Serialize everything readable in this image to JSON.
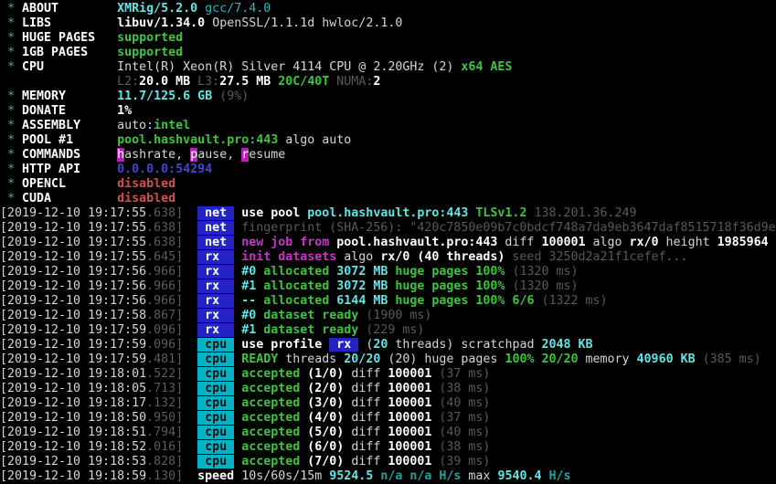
{
  "palette": {
    "background": "#000000",
    "white": "#d6d6d6",
    "white_bright": "#ffffff",
    "green": "#3ec53e",
    "cyan": "#2ab3c5",
    "cyan_bright": "#5fe6e6",
    "teal_dim": "#2a9d9d",
    "gray": "#5a5a5a",
    "magenta": "#c538c5",
    "magenta_hotkey_bg": "#bb1dbb",
    "red": "#cf5050",
    "blue": "#4545d5",
    "badge_blue_bg": "#2323c8",
    "badge_cyan_bg": "#00b3c4"
  },
  "terminal": {
    "bullet": "*",
    "config_rows": [
      {
        "label": "ABOUT",
        "star": true,
        "segments": [
          {
            "t": "XMRig/5.2.0",
            "c": "cyb"
          },
          {
            "t": " gcc/7.4.0",
            "c": "cy"
          }
        ]
      },
      {
        "label": "LIBS",
        "star": true,
        "segments": [
          {
            "t": "libuv/1.34.0",
            "c": "wb"
          },
          {
            "t": " OpenSSL/1.1.1d hwloc/2.1.0",
            "c": "w"
          }
        ]
      },
      {
        "label": "HUGE PAGES",
        "star": true,
        "segments": [
          {
            "t": "supported",
            "c": "g"
          }
        ]
      },
      {
        "label": "1GB PAGES",
        "star": true,
        "segments": [
          {
            "t": "supported",
            "c": "g"
          }
        ]
      },
      {
        "label": "CPU",
        "star": true,
        "segments": [
          {
            "t": "Intel(R) Xeon(R) Silver 4114 CPU @ 2.20GHz (2) ",
            "c": "w"
          },
          {
            "t": "x64 AES",
            "c": "g"
          }
        ]
      },
      {
        "label": "",
        "star": false,
        "segments": [
          {
            "t": "L2:",
            "c": "gr"
          },
          {
            "t": "20.0 MB ",
            "c": "wb"
          },
          {
            "t": "L3:",
            "c": "gr"
          },
          {
            "t": "27.5 MB ",
            "c": "wb"
          },
          {
            "t": "20C/40T ",
            "c": "g"
          },
          {
            "t": "NUMA:",
            "c": "gr"
          },
          {
            "t": "2",
            "c": "wb"
          }
        ]
      },
      {
        "label": "MEMORY",
        "star": true,
        "segments": [
          {
            "t": "11.7/125.6 GB ",
            "c": "cyb"
          },
          {
            "t": "(9%)",
            "c": "gr"
          }
        ]
      },
      {
        "label": "DONATE",
        "star": true,
        "segments": [
          {
            "t": "1%",
            "c": "wb"
          }
        ]
      },
      {
        "label": "ASSEMBLY",
        "star": true,
        "segments": [
          {
            "t": "auto:",
            "c": "w"
          },
          {
            "t": "intel",
            "c": "g"
          }
        ]
      },
      {
        "label": "POOL #1",
        "star": true,
        "segments": [
          {
            "t": "pool.hashvault.pro:443",
            "c": "g"
          },
          {
            "t": " algo auto",
            "c": "w"
          }
        ]
      },
      {
        "label": "COMMANDS",
        "star": true,
        "segments": [
          {
            "t": "h",
            "c": "w",
            "bg": "hotkey"
          },
          {
            "t": "ashrate, ",
            "c": "w"
          },
          {
            "t": "p",
            "c": "w",
            "bg": "hotkey"
          },
          {
            "t": "ause, ",
            "c": "w"
          },
          {
            "t": "r",
            "c": "w",
            "bg": "hotkey"
          },
          {
            "t": "esume",
            "c": "w"
          }
        ]
      },
      {
        "label": "HTTP API",
        "star": true,
        "segments": [
          {
            "t": "0.0.0.0:54294",
            "c": "bl"
          }
        ]
      },
      {
        "label": "OPENCL",
        "star": true,
        "segments": [
          {
            "t": "disabled",
            "c": "r"
          }
        ]
      },
      {
        "label": "CUDA",
        "star": true,
        "segments": [
          {
            "t": "disabled",
            "c": "r"
          }
        ]
      }
    ],
    "log_rows": [
      {
        "time": "[2019-12-10 19:17:55",
        "ms": ".638]",
        "tag": " net ",
        "tag_style": "tag-net",
        "segments": [
          {
            "t": "use pool ",
            "c": "wb"
          },
          {
            "t": "pool.hashvault.pro:443 ",
            "c": "cyb"
          },
          {
            "t": "TLSv1.2 ",
            "c": "g"
          },
          {
            "t": "138.201.36.249",
            "c": "gr"
          }
        ]
      },
      {
        "time": "[2019-12-10 19:17:55",
        "ms": ".638]",
        "tag": " net ",
        "tag_style": "tag-net",
        "segments": [
          {
            "t": "fingerprint (SHA-256): \"420c7850e09b7c0bdcf748a7da9eb3647daf8515718f36d9e",
            "c": "gr"
          }
        ]
      },
      {
        "time": "[2019-12-10 19:17:55",
        "ms": ".638]",
        "tag": " net ",
        "tag_style": "tag-net",
        "segments": [
          {
            "t": "new job from ",
            "c": "m"
          },
          {
            "t": "pool.hashvault.pro:443 ",
            "c": "wb"
          },
          {
            "t": "diff ",
            "c": "w"
          },
          {
            "t": "100001 ",
            "c": "wb"
          },
          {
            "t": "algo ",
            "c": "w"
          },
          {
            "t": "rx/0 ",
            "c": "wb"
          },
          {
            "t": "height ",
            "c": "w"
          },
          {
            "t": "1985964",
            "c": "wb"
          }
        ]
      },
      {
        "time": "[2019-12-10 19:17:55",
        "ms": ".645]",
        "tag": " rx  ",
        "tag_style": "tag-net",
        "segments": [
          {
            "t": "init datasets ",
            "c": "m"
          },
          {
            "t": "algo ",
            "c": "w"
          },
          {
            "t": "rx/0 ",
            "c": "wb"
          },
          {
            "t": "(40 threads) ",
            "c": "wb"
          },
          {
            "t": "seed 3250d2a21f1cefef...",
            "c": "gr"
          }
        ]
      },
      {
        "time": "[2019-12-10 19:17:56",
        "ms": ".966]",
        "tag": " rx  ",
        "tag_style": "tag-net",
        "segments": [
          {
            "t": "#0 ",
            "c": "cyb"
          },
          {
            "t": "allocated ",
            "c": "g"
          },
          {
            "t": "3072 MB ",
            "c": "cyb"
          },
          {
            "t": "huge pages ",
            "c": "g"
          },
          {
            "t": "100% ",
            "c": "g"
          },
          {
            "t": "(1320 ms)",
            "c": "gr"
          }
        ]
      },
      {
        "time": "[2019-12-10 19:17:56",
        "ms": ".966]",
        "tag": " rx  ",
        "tag_style": "tag-net",
        "segments": [
          {
            "t": "#1 ",
            "c": "cyb"
          },
          {
            "t": "allocated ",
            "c": "g"
          },
          {
            "t": "3072 MB ",
            "c": "cyb"
          },
          {
            "t": "huge pages ",
            "c": "g"
          },
          {
            "t": "100% ",
            "c": "g"
          },
          {
            "t": "(1320 ms)",
            "c": "gr"
          }
        ]
      },
      {
        "time": "[2019-12-10 19:17:56",
        "ms": ".966]",
        "tag": " rx  ",
        "tag_style": "tag-net",
        "segments": [
          {
            "t": "-- ",
            "c": "cyb"
          },
          {
            "t": "allocated ",
            "c": "g"
          },
          {
            "t": "6144 MB ",
            "c": "cyb"
          },
          {
            "t": "huge pages ",
            "c": "g"
          },
          {
            "t": "100% 6/6 ",
            "c": "g"
          },
          {
            "t": "(1322 ms)",
            "c": "gr"
          }
        ]
      },
      {
        "time": "[2019-12-10 19:17:58",
        "ms": ".867]",
        "tag": " rx  ",
        "tag_style": "tag-net",
        "segments": [
          {
            "t": "#0 ",
            "c": "cyb"
          },
          {
            "t": "dataset ready ",
            "c": "g"
          },
          {
            "t": "(1900 ms)",
            "c": "gr"
          }
        ]
      },
      {
        "time": "[2019-12-10 19:17:59",
        "ms": ".096]",
        "tag": " rx  ",
        "tag_style": "tag-net",
        "segments": [
          {
            "t": "#1 ",
            "c": "cyb"
          },
          {
            "t": "dataset ready ",
            "c": "g"
          },
          {
            "t": "(229 ms)",
            "c": "gr"
          }
        ]
      },
      {
        "time": "[2019-12-10 19:17:59",
        "ms": ".096]",
        "tag": " cpu ",
        "tag_style": "tag-cpu",
        "segments": [
          {
            "t": "use profile ",
            "c": "wb"
          },
          {
            "t": " rx ",
            "c": "wb",
            "bg": "badge-blue"
          },
          {
            "t": " (",
            "c": "w"
          },
          {
            "t": "20",
            "c": "cyb"
          },
          {
            "t": " threads) ",
            "c": "w"
          },
          {
            "t": "scratchpad ",
            "c": "w"
          },
          {
            "t": "2048 KB",
            "c": "cyb"
          }
        ]
      },
      {
        "time": "[2019-12-10 19:17:59",
        "ms": ".481]",
        "tag": " cpu ",
        "tag_style": "tag-cpu",
        "segments": [
          {
            "t": "READY ",
            "c": "g"
          },
          {
            "t": "threads ",
            "c": "w"
          },
          {
            "t": "20/20",
            "c": "cyb"
          },
          {
            "t": " (20) ",
            "c": "w"
          },
          {
            "t": "huge pages ",
            "c": "w"
          },
          {
            "t": "100% 20/20 ",
            "c": "g"
          },
          {
            "t": "memory ",
            "c": "w"
          },
          {
            "t": "40960 KB ",
            "c": "cyb"
          },
          {
            "t": "(385 ms)",
            "c": "gr"
          }
        ]
      },
      {
        "time": "[2019-12-10 19:18:01",
        "ms": ".522]",
        "tag": " cpu ",
        "tag_style": "tag-cpu",
        "segments": [
          {
            "t": "accepted ",
            "c": "g"
          },
          {
            "t": "(1/0) ",
            "c": "wb"
          },
          {
            "t": "diff ",
            "c": "w"
          },
          {
            "t": "100001 ",
            "c": "wb"
          },
          {
            "t": "(37 ms)",
            "c": "gr"
          }
        ]
      },
      {
        "time": "[2019-12-10 19:18:05",
        "ms": ".713]",
        "tag": " cpu ",
        "tag_style": "tag-cpu",
        "segments": [
          {
            "t": "accepted ",
            "c": "g"
          },
          {
            "t": "(2/0) ",
            "c": "wb"
          },
          {
            "t": "diff ",
            "c": "w"
          },
          {
            "t": "100001 ",
            "c": "wb"
          },
          {
            "t": "(38 ms)",
            "c": "gr"
          }
        ]
      },
      {
        "time": "[2019-12-10 19:18:17",
        "ms": ".132]",
        "tag": " cpu ",
        "tag_style": "tag-cpu",
        "segments": [
          {
            "t": "accepted ",
            "c": "g"
          },
          {
            "t": "(3/0) ",
            "c": "wb"
          },
          {
            "t": "diff ",
            "c": "w"
          },
          {
            "t": "100001 ",
            "c": "wb"
          },
          {
            "t": "(40 ms)",
            "c": "gr"
          }
        ]
      },
      {
        "time": "[2019-12-10 19:18:50",
        "ms": ".950]",
        "tag": " cpu ",
        "tag_style": "tag-cpu",
        "segments": [
          {
            "t": "accepted ",
            "c": "g"
          },
          {
            "t": "(4/0) ",
            "c": "wb"
          },
          {
            "t": "diff ",
            "c": "w"
          },
          {
            "t": "100001 ",
            "c": "wb"
          },
          {
            "t": "(37 ms)",
            "c": "gr"
          }
        ]
      },
      {
        "time": "[2019-12-10 19:18:51",
        "ms": ".794]",
        "tag": " cpu ",
        "tag_style": "tag-cpu",
        "segments": [
          {
            "t": "accepted ",
            "c": "g"
          },
          {
            "t": "(5/0) ",
            "c": "wb"
          },
          {
            "t": "diff ",
            "c": "w"
          },
          {
            "t": "100001 ",
            "c": "wb"
          },
          {
            "t": "(40 ms)",
            "c": "gr"
          }
        ]
      },
      {
        "time": "[2019-12-10 19:18:52",
        "ms": ".016]",
        "tag": " cpu ",
        "tag_style": "tag-cpu",
        "segments": [
          {
            "t": "accepted ",
            "c": "g"
          },
          {
            "t": "(6/0) ",
            "c": "wb"
          },
          {
            "t": "diff ",
            "c": "w"
          },
          {
            "t": "100001 ",
            "c": "wb"
          },
          {
            "t": "(38 ms)",
            "c": "gr"
          }
        ]
      },
      {
        "time": "[2019-12-10 19:18:53",
        "ms": ".828]",
        "tag": " cpu ",
        "tag_style": "tag-cpu",
        "segments": [
          {
            "t": "accepted ",
            "c": "g"
          },
          {
            "t": "(7/0) ",
            "c": "wb"
          },
          {
            "t": "diff ",
            "c": "w"
          },
          {
            "t": "100001 ",
            "c": "wb"
          },
          {
            "t": "(39 ms)",
            "c": "gr"
          }
        ]
      },
      {
        "time": "[2019-12-10 19:18:59",
        "ms": ".130]",
        "tag": "speed",
        "tag_style": "tag-speed",
        "segments": [
          {
            "t": "10s/60s/15m ",
            "c": "w"
          },
          {
            "t": "9524.5 ",
            "c": "cyb"
          },
          {
            "t": "n/a n/a ",
            "c": "t"
          },
          {
            "t": "H/s ",
            "c": "t"
          },
          {
            "t": "max ",
            "c": "w"
          },
          {
            "t": "9540.4 ",
            "c": "cyb"
          },
          {
            "t": "H/s",
            "c": "t"
          }
        ]
      }
    ]
  }
}
